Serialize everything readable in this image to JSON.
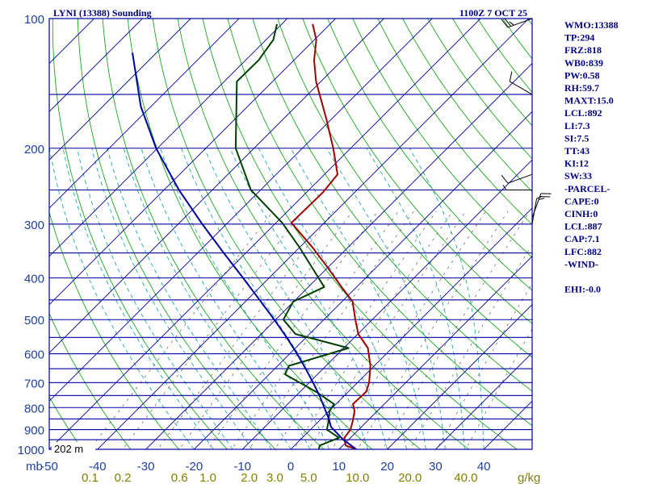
{
  "header": {
    "station_title": "LYNI (13388) Sounding",
    "time_label": "1100Z  7 OCT 25"
  },
  "axis": {
    "pressure_unit": "mb",
    "mixing_ratio_unit": "g/kg",
    "surface_height_label": "202 m"
  },
  "indices": [
    "WMO:13388",
    "TP:294",
    "FRZ:818",
    "WB0:839",
    "PW:0.58",
    "RH:59.7",
    "MAXT:15.0",
    "LCL:892",
    "LI:7.3",
    "SI:7.5",
    "TT:43",
    "KI:12",
    "SW:33",
    "-PARCEL-",
    "CAPE:0",
    "CINH:0",
    "LCL:887",
    "CAP:7.1",
    "LFC:882",
    "-WIND-",
    "",
    "EHI:-0.0"
  ],
  "colors": {
    "isobar": "#0000a0",
    "isotherm": "#0000a0",
    "dry_adiabat": "#00a000",
    "moist_adiabat": "#00a0a0",
    "mixing_ratio": "#404040",
    "temperature": "#a00000",
    "dewpoint": "#004000",
    "parcel": "#0000a0",
    "index_text": "#000080",
    "tick_text": "#2040a0",
    "mixing_ratio_text": "#808000"
  },
  "chart_data": {
    "type": "line",
    "title": "LYNI (13388) Sounding",
    "xlabel": "",
    "ylabel": "mb",
    "ylim": [
      1000,
      100
    ],
    "xlim": [
      -50,
      50
    ],
    "y_scale": "log",
    "pressure_ticks": [
      100,
      200,
      300,
      400,
      500,
      600,
      700,
      800,
      900,
      1000
    ],
    "temperature_ticks": [
      -50,
      -40,
      -30,
      -20,
      -10,
      0,
      10,
      20,
      30,
      40
    ],
    "mixing_ratio_ticks": [
      "0.1",
      "0.2",
      "0.6",
      "1.0",
      "2.0",
      "3.0",
      "5.0",
      "10.0",
      "20.0",
      "40.0"
    ],
    "series": [
      {
        "points": [
          [
            999,
            13.5
          ],
          [
            980,
            10.6
          ],
          [
            940,
            8.7
          ],
          [
            900,
            8.3
          ],
          [
            860,
            7.0
          ],
          [
            815,
            5.3
          ],
          [
            785,
            3.5
          ],
          [
            735,
            3.7
          ],
          [
            700,
            2.4
          ],
          [
            640,
            -0.8
          ],
          [
            582,
            -5.0
          ],
          [
            540,
            -9.9
          ],
          [
            500,
            -13.5
          ],
          [
            454,
            -17.8
          ],
          [
            420,
            -23.1
          ],
          [
            378,
            -30.1
          ],
          [
            340,
            -37.3
          ],
          [
            298,
            -46.8
          ],
          [
            253,
            -46.6
          ],
          [
            230,
            -47.3
          ],
          [
            200,
            -53.6
          ],
          [
            170,
            -61.4
          ],
          [
            140,
            -71.0
          ],
          [
            125,
            -75.8
          ],
          [
            112,
            -79.6
          ],
          [
            103,
            -83.6
          ]
        ]
      },
      {
        "points": [
          [
            999,
            5.8
          ],
          [
            980,
            5.2
          ],
          [
            940,
            7.6
          ],
          [
            900,
            3.4
          ],
          [
            860,
            2.0
          ],
          [
            815,
            0.1
          ],
          [
            785,
            -0.4
          ],
          [
            735,
            -6.7
          ],
          [
            670,
            -16.7
          ],
          [
            640,
            -17.7
          ],
          [
            582,
            -9.0
          ],
          [
            540,
            -22.9
          ],
          [
            500,
            -28.4
          ],
          [
            454,
            -30.1
          ],
          [
            420,
            -26.7
          ],
          [
            340,
            -40.0
          ],
          [
            298,
            -48.7
          ],
          [
            250,
            -62.0
          ],
          [
            200,
            -73.8
          ],
          [
            140,
            -87.4
          ],
          [
            125,
            -87.3
          ],
          [
            112,
            -88.5
          ],
          [
            103,
            -91.0
          ]
        ]
      },
      {
        "points": [
          [
            999,
            13.5
          ],
          [
            950,
            8.9
          ],
          [
            900,
            4.8
          ],
          [
            887,
            3.7
          ],
          [
            850,
            1.6
          ],
          [
            800,
            -1.7
          ],
          [
            750,
            -5.2
          ],
          [
            700,
            -9.2
          ],
          [
            650,
            -13.6
          ],
          [
            600,
            -18.5
          ],
          [
            550,
            -24.0
          ],
          [
            500,
            -30.3
          ],
          [
            450,
            -37.4
          ],
          [
            400,
            -45.4
          ],
          [
            350,
            -54.6
          ],
          [
            300,
            -65.0
          ],
          [
            250,
            -76.9
          ],
          [
            200,
            -90.3
          ],
          [
            160,
            -102.1
          ],
          [
            120,
            -115.0
          ]
        ]
      }
    ],
    "wind_barbs": [
      {
        "p": 100,
        "dir_deg": 250,
        "speed_kt": 25
      },
      {
        "p": 150,
        "dir_deg": 300,
        "speed_kt": 10
      },
      {
        "p": 230,
        "dir_deg": 250,
        "speed_kt": 10
      },
      {
        "p": 250,
        "dir_deg": 270,
        "speed_kt": 5
      },
      {
        "p": 290,
        "dir_deg": 20,
        "speed_kt": 25
      },
      {
        "p": 300,
        "dir_deg": 10,
        "speed_kt": 5
      }
    ]
  }
}
